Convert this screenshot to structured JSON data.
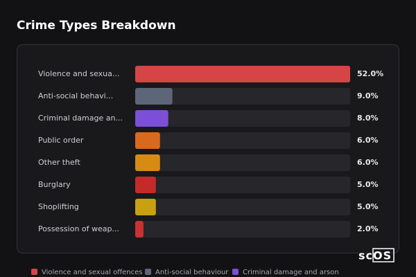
{
  "chart_data": {
    "type": "bar",
    "orientation": "horizontal",
    "title": "Crime Types Breakdown",
    "categories": [
      "Violence and sexua...",
      "Anti-social behavi...",
      "Criminal damage an...",
      "Public order",
      "Other theft",
      "Burglary",
      "Shoplifting",
      "Possession of weap..."
    ],
    "values": [
      52.0,
      9.0,
      8.0,
      6.0,
      6.0,
      5.0,
      5.0,
      2.0
    ],
    "value_labels": [
      "52.0%",
      "9.0%",
      "8.0%",
      "6.0%",
      "6.0%",
      "5.0%",
      "5.0%",
      "2.0%"
    ],
    "colors": [
      "#d64545",
      "#5d6679",
      "#7c4fd8",
      "#d9691e",
      "#d68c14",
      "#c42a2a",
      "#c9a010",
      "#c83232"
    ],
    "xlim": [
      0,
      52
    ],
    "legend": [
      "Violence and sexual offences",
      "Anti-social behaviour",
      "Criminal damage and arson"
    ],
    "logo": "scOS"
  }
}
